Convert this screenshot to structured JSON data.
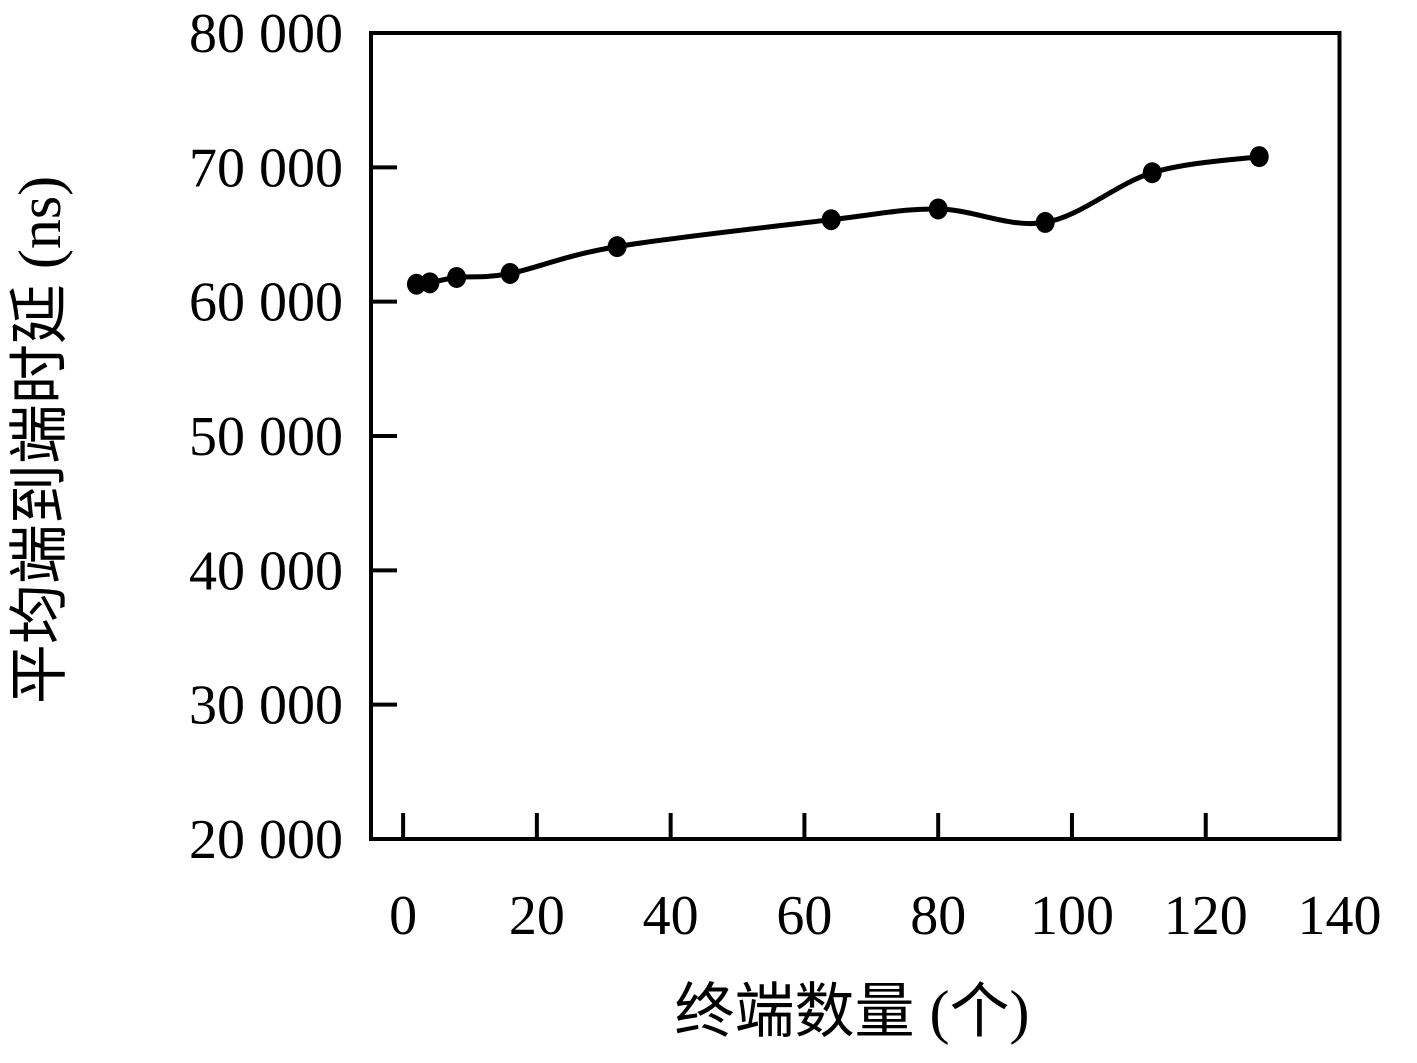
{
  "chart_data": {
    "type": "line",
    "title": "",
    "xlabel": "终端数量 (个)",
    "ylabel": "平均端到端时延 (ns)",
    "x": [
      2,
      4,
      8,
      16,
      32,
      64,
      80,
      96,
      112,
      128
    ],
    "y": [
      61300,
      61400,
      61800,
      62100,
      64100,
      66100,
      66900,
      65900,
      69600,
      70800
    ],
    "xlim": [
      -4.8,
      140
    ],
    "ylim": [
      20000,
      80000
    ],
    "x_ticks": [
      0,
      20,
      40,
      60,
      80,
      100,
      120,
      140
    ],
    "x_tick_labels": [
      "0",
      "20",
      "40",
      "60",
      "80",
      "100",
      "120",
      "140"
    ],
    "y_ticks": [
      20000,
      30000,
      40000,
      50000,
      60000,
      70000,
      80000
    ],
    "y_tick_labels": [
      "20 000",
      "30 000",
      "40 000",
      "50 000",
      "60 000",
      "70 000",
      "80 000"
    ],
    "grid": false,
    "legend": "none",
    "line_color": "#000000",
    "marker": "filled-circle",
    "marker_color": "#000000",
    "background": "#ffffff",
    "frame": "full-box",
    "tick_direction": "in"
  }
}
